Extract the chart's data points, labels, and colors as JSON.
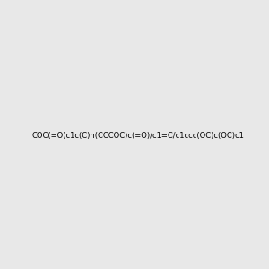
{
  "smiles": "COC(=O)c1c(C)n(CCCOC)c(=O)/c1=C/c1ccc(OC)c(OC)c1",
  "image_size": 300,
  "background_color": "#e8e8e8"
}
